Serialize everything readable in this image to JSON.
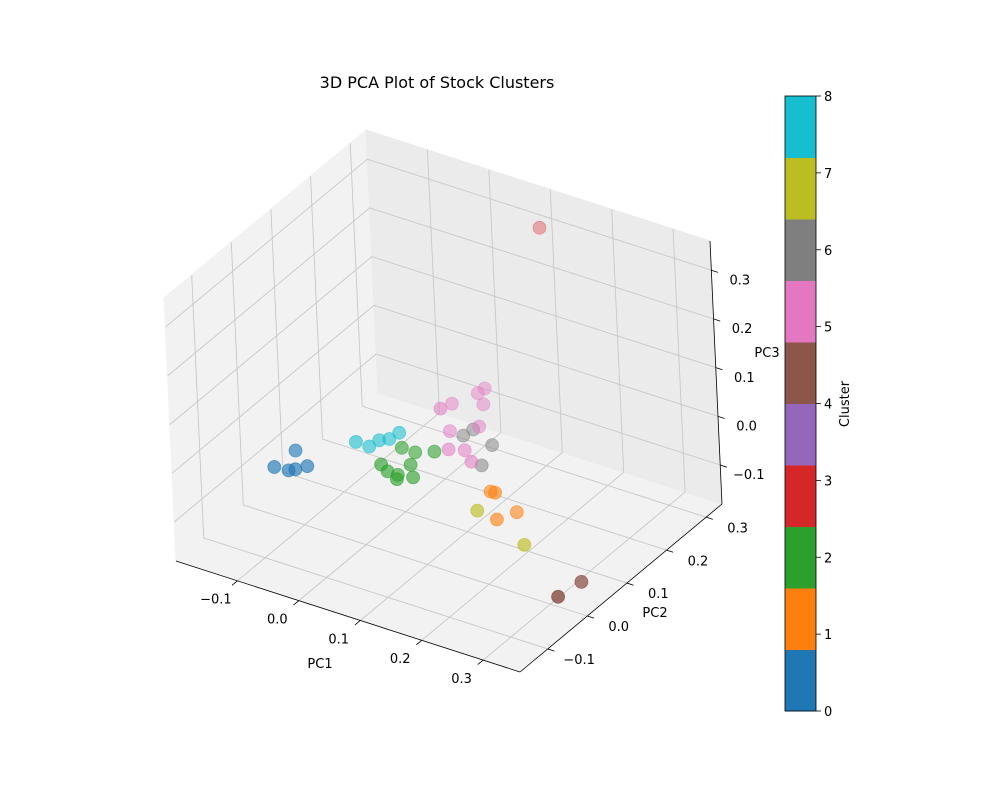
{
  "chart_data": {
    "type": "scatter",
    "title": "3D PCA Plot of Stock Clusters",
    "xlabel": "PC1",
    "ylabel": "PC2",
    "zlabel": "PC3",
    "xticks": [
      "−0.1",
      "0.0",
      "0.1",
      "0.2",
      "0.3"
    ],
    "yticks": [
      "−0.1",
      "0.0",
      "0.1",
      "0.2",
      "0.3"
    ],
    "zticks": [
      "−0.1",
      "0.0",
      "0.1",
      "0.2",
      "0.3"
    ],
    "xlim": [
      -0.2,
      0.36
    ],
    "ylim": [
      -0.17,
      0.34
    ],
    "zlim": [
      -0.18,
      0.36
    ],
    "grid": true,
    "colorbar": {
      "label": "Cluster",
      "min": 0,
      "max": 8,
      "ticks": [
        "0",
        "1",
        "2",
        "3",
        "4",
        "5",
        "6",
        "7",
        "8"
      ],
      "colors": [
        "#1f77b4",
        "#ff7f0e",
        "#2ca02c",
        "#d62728",
        "#9467bd",
        "#8c564b",
        "#e377c2",
        "#7f7f7f",
        "#bcbd22",
        "#17becf"
      ]
    },
    "points": [
      {
        "pc1": -0.146,
        "pc2": 0.0,
        "pc3": -0.08,
        "cluster": 0
      },
      {
        "pc1": -0.13,
        "pc2": 0.03,
        "pc3": -0.06,
        "cluster": 0
      },
      {
        "pc1": -0.128,
        "pc2": 0.008,
        "pc3": -0.085,
        "cluster": 0
      },
      {
        "pc1": -0.118,
        "pc2": 0.01,
        "pc3": -0.08,
        "cluster": 0
      },
      {
        "pc1": -0.105,
        "pc2": 0.02,
        "pc3": -0.075,
        "cluster": 0
      },
      {
        "pc1": 0.128,
        "pc2": 0.12,
        "pc3": -0.1,
        "cluster": 1
      },
      {
        "pc1": 0.142,
        "pc2": 0.11,
        "pc3": -0.09,
        "cluster": 1
      },
      {
        "pc1": 0.15,
        "pc2": 0.1,
        "pc3": -0.135,
        "cluster": 1
      },
      {
        "pc1": 0.163,
        "pc2": 0.13,
        "pc3": -0.135,
        "cluster": 1
      },
      {
        "pc1": -0.01,
        "pc2": 0.06,
        "pc3": -0.06,
        "cluster": 2
      },
      {
        "pc1": 0.0,
        "pc2": 0.06,
        "pc3": -0.07,
        "cluster": 2
      },
      {
        "pc1": 0.005,
        "pc2": 0.09,
        "pc3": -0.04,
        "cluster": 2
      },
      {
        "pc1": 0.01,
        "pc2": 0.07,
        "pc3": -0.08,
        "cluster": 2
      },
      {
        "pc1": 0.015,
        "pc2": 0.06,
        "pc3": -0.08,
        "cluster": 2
      },
      {
        "pc1": 0.02,
        "pc2": 0.1,
        "pc3": -0.05,
        "cluster": 2
      },
      {
        "pc1": 0.025,
        "pc2": 0.08,
        "pc3": -0.06,
        "cluster": 2
      },
      {
        "pc1": 0.035,
        "pc2": 0.07,
        "pc3": -0.075,
        "cluster": 2
      },
      {
        "pc1": 0.045,
        "pc2": 0.11,
        "pc3": -0.045,
        "cluster": 2
      },
      {
        "pc1": 0.12,
        "pc2": 0.28,
        "pc3": 0.33,
        "cluster": 3
      },
      {
        "pc1": 0.312,
        "pc2": 0.06,
        "pc3": -0.17,
        "cluster": 4
      },
      {
        "pc1": 0.32,
        "pc2": -0.01,
        "pc3": -0.15,
        "cluster": 4
      },
      {
        "pc1": 0.03,
        "pc2": 0.18,
        "pc3": 0.0,
        "cluster": 5
      },
      {
        "pc1": 0.038,
        "pc2": 0.14,
        "pc3": 0.02,
        "cluster": 5
      },
      {
        "pc1": 0.045,
        "pc2": 0.15,
        "pc3": -0.03,
        "cluster": 5
      },
      {
        "pc1": 0.055,
        "pc2": 0.13,
        "pc3": -0.05,
        "cluster": 5
      },
      {
        "pc1": 0.06,
        "pc2": 0.2,
        "pc3": 0.02,
        "cluster": 5
      },
      {
        "pc1": 0.065,
        "pc2": 0.21,
        "pc3": 0.025,
        "cluster": 5
      },
      {
        "pc1": 0.068,
        "pc2": 0.15,
        "pc3": -0.06,
        "cluster": 5
      },
      {
        "pc1": 0.075,
        "pc2": 0.19,
        "pc3": 0.01,
        "cluster": 5
      },
      {
        "pc1": 0.08,
        "pc2": 0.17,
        "pc3": -0.02,
        "cluster": 5
      },
      {
        "pc1": 0.085,
        "pc2": 0.14,
        "pc3": -0.07,
        "cluster": 5
      },
      {
        "pc1": 0.06,
        "pc2": 0.16,
        "pc3": -0.04,
        "cluster": 6
      },
      {
        "pc1": 0.07,
        "pc2": 0.17,
        "pc3": -0.03,
        "cluster": 6
      },
      {
        "pc1": 0.095,
        "pc2": 0.15,
        "pc3": -0.08,
        "cluster": 6
      },
      {
        "pc1": 0.1,
        "pc2": 0.17,
        "pc3": -0.05,
        "cluster": 6
      },
      {
        "pc1": 0.125,
        "pc2": 0.09,
        "pc3": -0.12,
        "cluster": 7
      },
      {
        "pc1": 0.2,
        "pc2": 0.09,
        "pc3": -0.16,
        "cluster": 7
      },
      {
        "pc1": -0.05,
        "pc2": 0.06,
        "pc3": -0.03,
        "cluster": 8
      },
      {
        "pc1": -0.035,
        "pc2": 0.07,
        "pc3": -0.04,
        "cluster": 8
      },
      {
        "pc1": -0.025,
        "pc2": 0.08,
        "pc3": -0.03,
        "cluster": 8
      },
      {
        "pc1": -0.015,
        "pc2": 0.09,
        "pc3": -0.03,
        "cluster": 8
      },
      {
        "pc1": -0.005,
        "pc2": 0.1,
        "pc3": -0.02,
        "cluster": 8
      }
    ]
  }
}
